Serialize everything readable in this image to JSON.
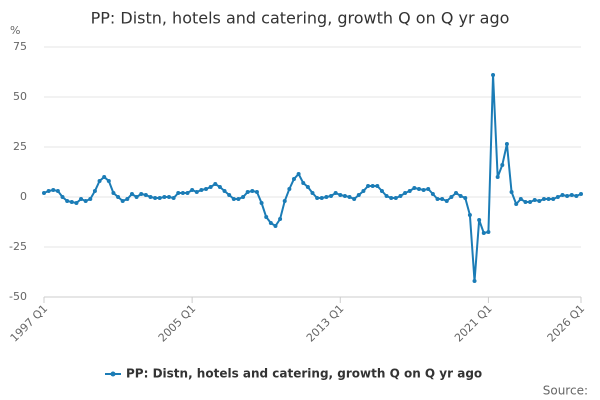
{
  "chart_data": {
    "type": "line",
    "title": "PP: Distn, hotels and catering, growth Q on Q yr ago",
    "y_unit": "%",
    "source": "Source:",
    "categories": [
      "1997 Q1",
      null,
      null,
      null,
      null,
      null,
      null,
      null,
      null,
      null,
      null,
      null,
      null,
      null,
      null,
      null,
      null,
      null,
      null,
      null,
      null,
      null,
      null,
      null,
      null,
      null,
      null,
      null,
      null,
      null,
      null,
      null,
      "2005 Q1",
      null,
      null,
      null,
      null,
      null,
      null,
      null,
      null,
      null,
      null,
      null,
      null,
      null,
      null,
      null,
      null,
      null,
      null,
      null,
      null,
      null,
      null,
      null,
      null,
      null,
      null,
      null,
      null,
      null,
      null,
      null,
      "2013 Q1",
      null,
      null,
      null,
      null,
      null,
      null,
      null,
      null,
      null,
      null,
      null,
      null,
      null,
      null,
      null,
      null,
      null,
      null,
      null,
      null,
      null,
      null,
      null,
      null,
      null,
      null,
      null,
      null,
      null,
      null,
      null,
      "2021 Q1",
      null,
      null,
      null,
      null,
      null,
      null,
      null,
      null,
      null,
      null,
      null,
      null,
      null,
      null,
      null,
      null,
      null,
      null,
      null,
      "2026 Q1"
    ],
    "series": [
      {
        "name": "PP: Distn, hotels and catering, growth Q on Q yr ago",
        "color": "#1b7cb6",
        "values": [
          2,
          3,
          3.5,
          3,
          0,
          -2,
          -2.5,
          -3,
          -1,
          -2,
          -1,
          3,
          8,
          10,
          8,
          2,
          0,
          -2,
          -1,
          1.5,
          0,
          1.5,
          1,
          0,
          -0.5,
          -0.5,
          0,
          0,
          -0.5,
          2,
          2,
          2,
          3.5,
          2.5,
          3.5,
          4,
          5,
          6.5,
          5,
          3,
          1,
          -1,
          -1,
          0,
          2.5,
          3,
          2.5,
          -3,
          -10,
          -13,
          -14.5,
          -11,
          -2,
          4,
          9,
          11.5,
          7,
          5,
          2,
          -0.5,
          -0.5,
          0,
          0.5,
          2,
          1,
          0.5,
          0,
          -1,
          1,
          3,
          5.5,
          5.5,
          5.5,
          3,
          0.5,
          -0.5,
          -0.5,
          0.5,
          2,
          3,
          4.5,
          4,
          3.5,
          4,
          1.5,
          -1,
          -1,
          -2,
          0,
          2,
          0.5,
          -0.5,
          -9,
          -42,
          -11.5,
          -18,
          -17.5,
          61,
          10,
          16,
          26.5,
          2.5,
          -3.5,
          -1,
          -2.5,
          -2.5,
          -1.5,
          -2,
          -1,
          -1,
          -1,
          0,
          1,
          0.5,
          1,
          0.5,
          1.5
        ]
      }
    ],
    "ylim": [
      -50,
      75
    ],
    "yticks": [
      -50,
      -25,
      0,
      25,
      50,
      75
    ],
    "grid": true
  }
}
